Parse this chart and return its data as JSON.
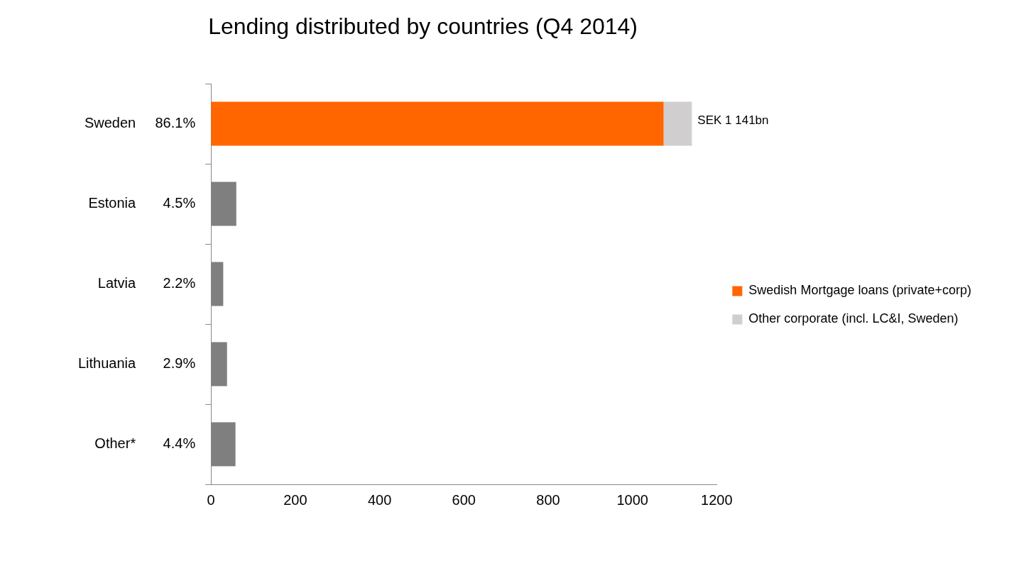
{
  "chart_data": {
    "type": "bar",
    "orientation": "horizontal",
    "stacked": true,
    "title": "Lending distributed by countries (Q4 2014)",
    "categories": [
      "Sweden",
      "Estonia",
      "Latvia",
      "Lithuania",
      "Other*"
    ],
    "series": [
      {
        "name": "Swedish Mortgage loans (private+corp)",
        "color": "#ff6600",
        "values": [
          1074,
          null,
          null,
          null,
          null
        ]
      },
      {
        "name": "Other corporate (incl. LC&I, Sweden)",
        "color": "#d0cece",
        "values": [
          67,
          null,
          null,
          null,
          null
        ]
      },
      {
        "color": "#7f7f7f",
        "values": [
          null,
          60,
          29,
          38,
          58
        ]
      }
    ],
    "totals": [
      "SEK 1 141bn",
      null,
      null,
      null,
      null
    ],
    "annotations": [
      "86.1%",
      "4.5%",
      "2.2%",
      "2.9%",
      "4.4%"
    ],
    "xlim": [
      0,
      1200
    ],
    "xticks": [
      0,
      200,
      400,
      600,
      800,
      1000,
      1200
    ],
    "grid": false,
    "legend": "right"
  }
}
